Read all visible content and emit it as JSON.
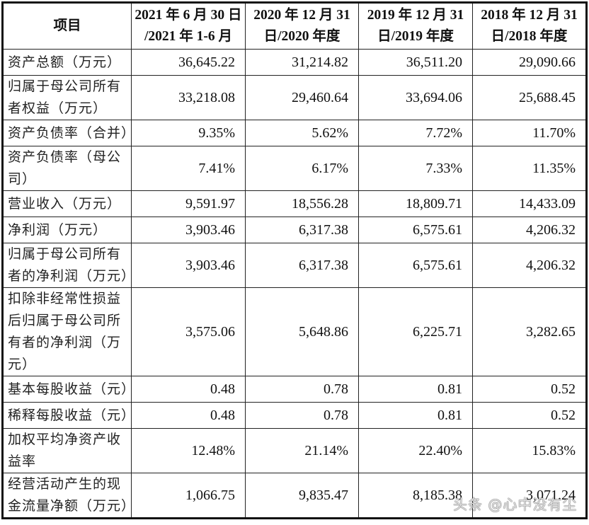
{
  "table": {
    "headers": [
      {
        "line1": "项目",
        "line2": ""
      },
      {
        "line1": "2021 年 6 月 30 日",
        "line2": "/2021 年 1-6 月"
      },
      {
        "line1": "2020 年 12 月 31",
        "line2": "日/2020 年度"
      },
      {
        "line1": "2019 年 12 月 31",
        "line2": "日/2019 年度"
      },
      {
        "line1": "2018 年 12 月 31",
        "line2": "日/2018 年度"
      }
    ],
    "rows": [
      {
        "label": "资产总额（万元）",
        "values": [
          "36,645.22",
          "31,214.82",
          "36,511.20",
          "29,090.66"
        ]
      },
      {
        "label": "归属于母公司所有者权益（万元）",
        "values": [
          "33,218.08",
          "29,460.64",
          "33,694.06",
          "25,688.45"
        ]
      },
      {
        "label": "资产负债率（合并）",
        "values": [
          "9.35%",
          "5.62%",
          "7.72%",
          "11.70%"
        ]
      },
      {
        "label": "资产负债率（母公司）",
        "values": [
          "7.41%",
          "6.17%",
          "7.33%",
          "11.35%"
        ]
      },
      {
        "label": "营业收入（万元）",
        "values": [
          "9,591.97",
          "18,556.28",
          "18,809.71",
          "14,433.09"
        ]
      },
      {
        "label": "净利润（万元）",
        "values": [
          "3,903.46",
          "6,317.38",
          "6,575.61",
          "4,206.32"
        ]
      },
      {
        "label": "归属于母公司所有者的净利润（万元）",
        "values": [
          "3,903.46",
          "6,317.38",
          "6,575.61",
          "4,206.32"
        ]
      },
      {
        "label": "扣除非经常性损益后归属于母公司所有者的净利润（万元）",
        "values": [
          "3,575.06",
          "5,648.86",
          "6,225.71",
          "3,282.65"
        ]
      },
      {
        "label": "基本每股收益（元）",
        "values": [
          "0.48",
          "0.78",
          "0.81",
          "0.52"
        ]
      },
      {
        "label": "稀释每股收益（元）",
        "values": [
          "0.48",
          "0.78",
          "0.81",
          "0.52"
        ]
      },
      {
        "label": "加权平均净资产收益率",
        "values": [
          "12.48%",
          "21.14%",
          "22.40%",
          "15.83%"
        ]
      },
      {
        "label": "经营活动产生的现金流量净额（万元）",
        "values": [
          "1,066.75",
          "9,835.47",
          "8,185.38",
          "3,071.24"
        ]
      }
    ]
  },
  "watermark": "头条 @心中没有尘"
}
